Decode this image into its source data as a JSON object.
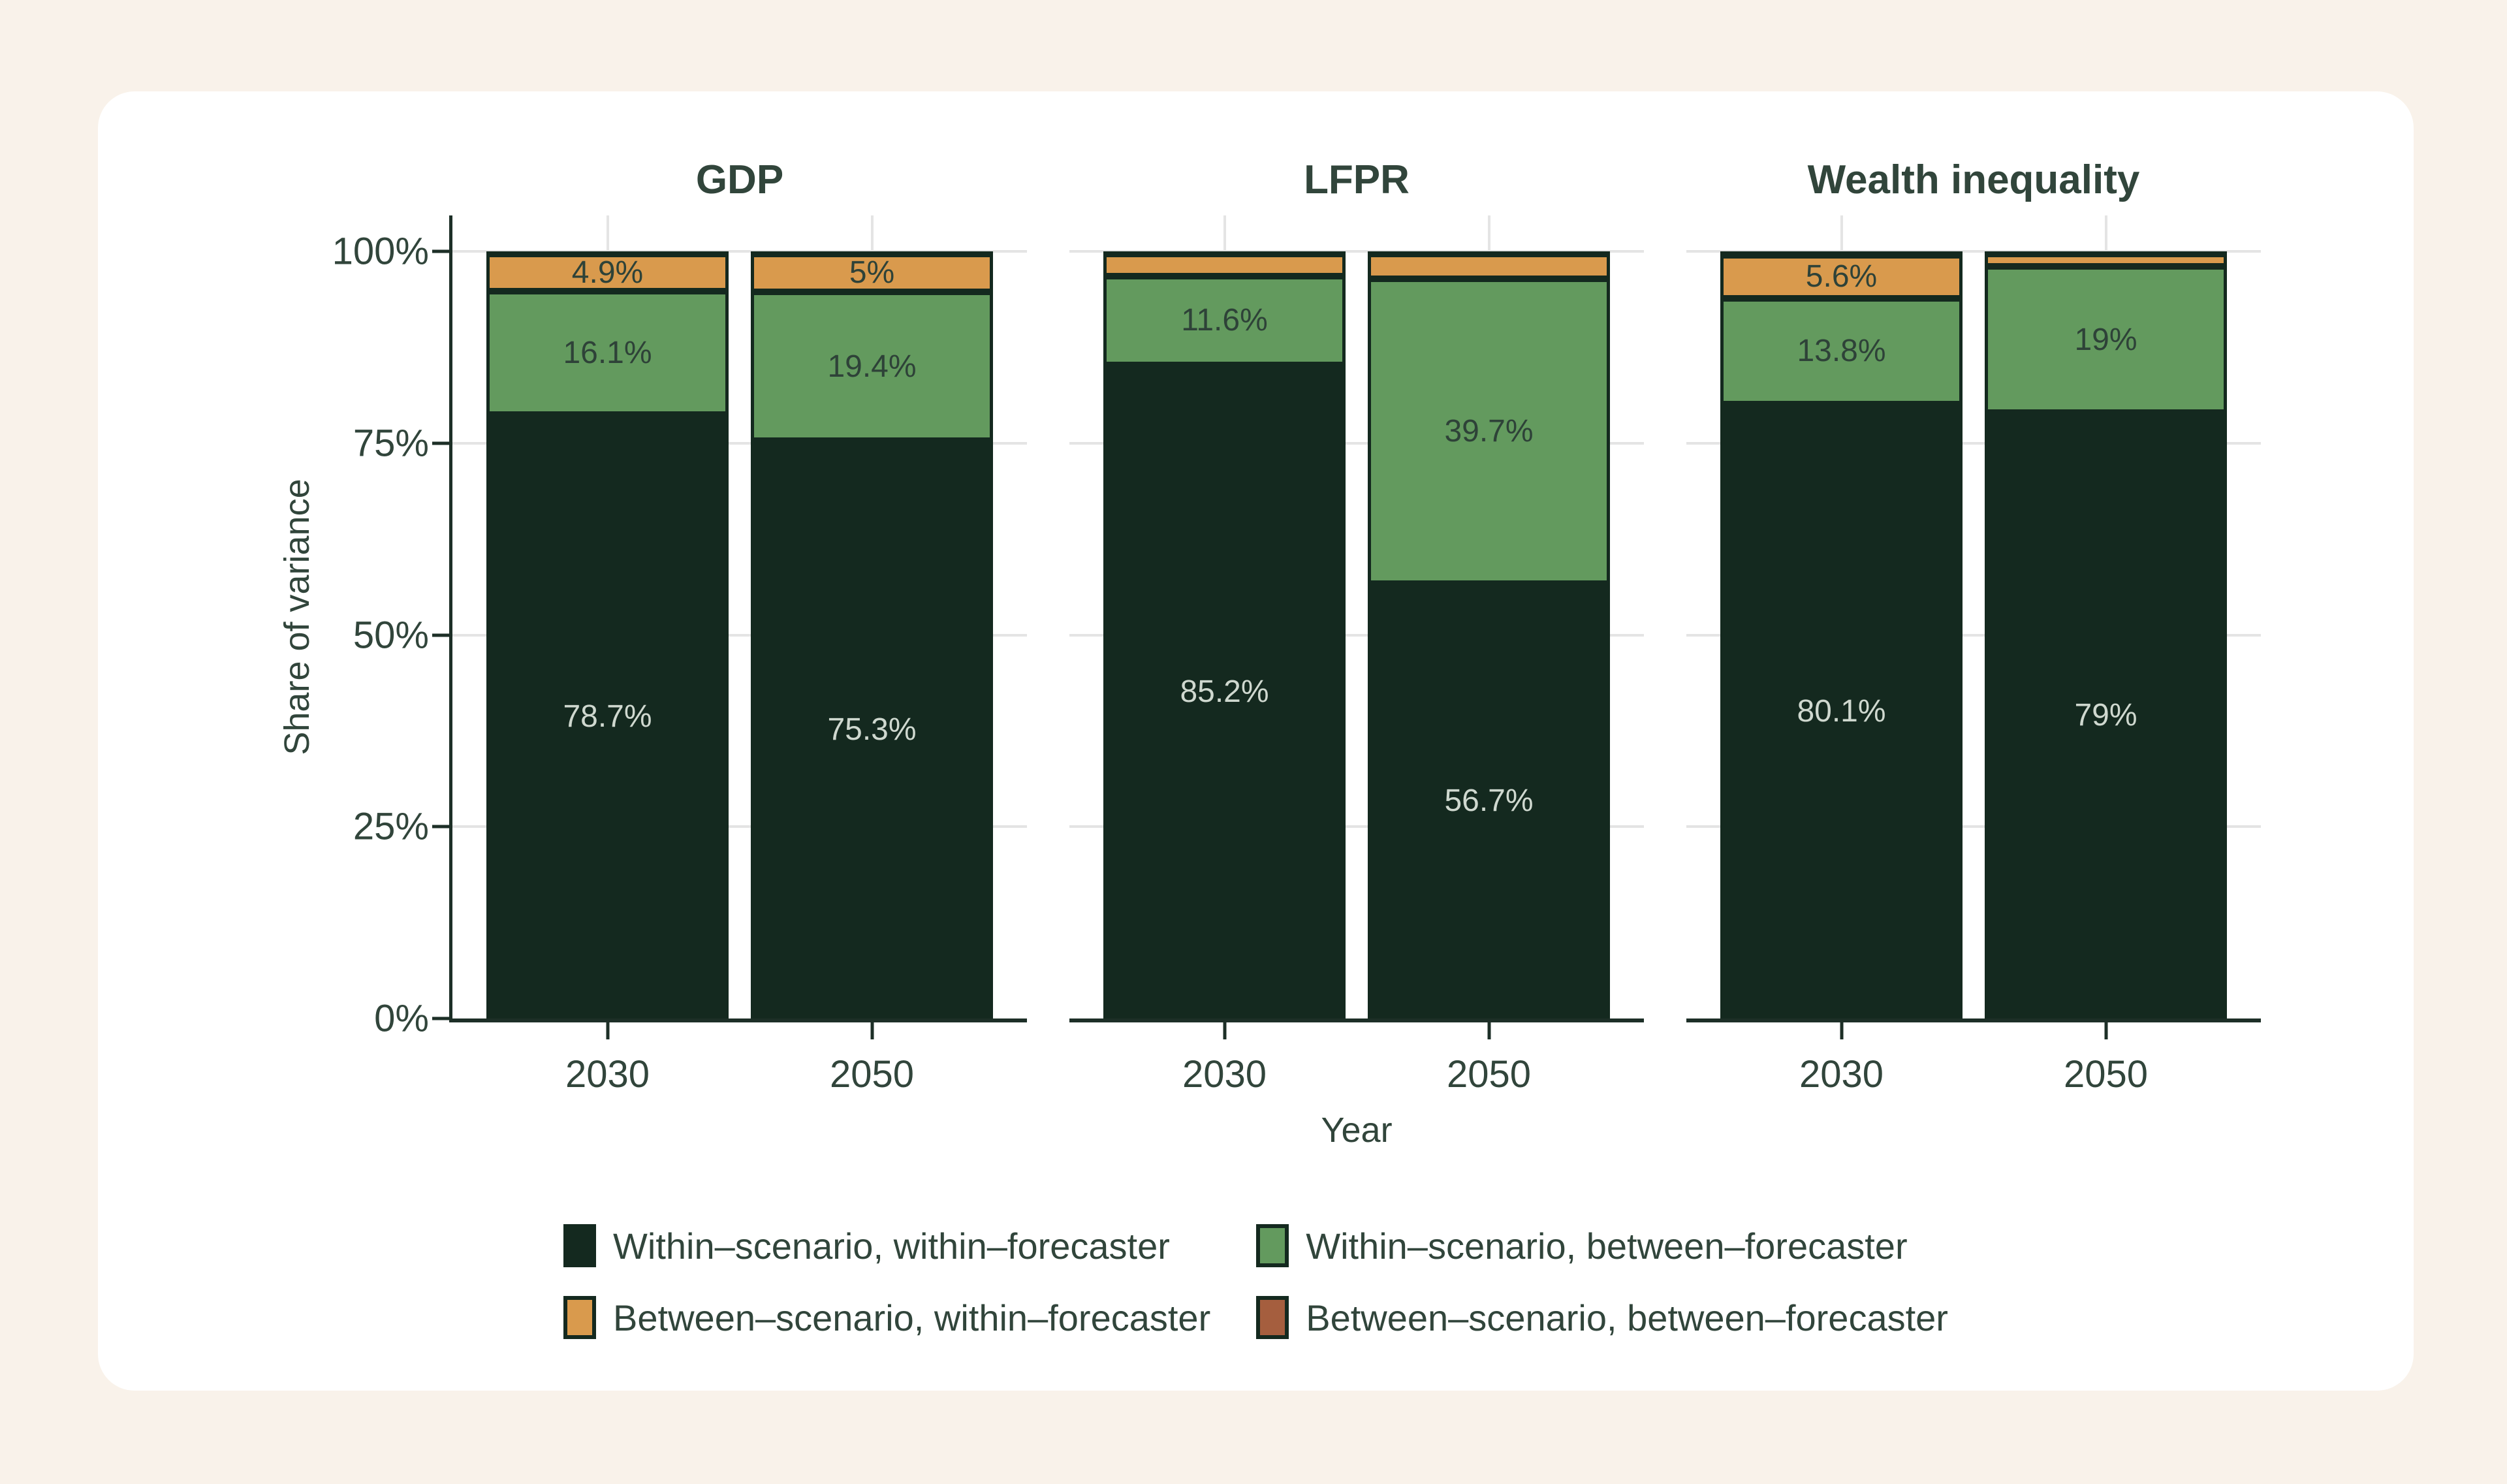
{
  "page": {
    "background_color": "#f9f2ea",
    "card_color": "#ffffff"
  },
  "colors": {
    "text": "#31453b",
    "axis": "#1d2f27",
    "gridline": "#e4e4e4",
    "segment_border": "#14291f",
    "label_on_dark": "#cfd8cf",
    "label_on_light": "#2e4238"
  },
  "chart_data": {
    "type": "bar",
    "stacked": true,
    "unit": "percent",
    "ylabel": "Share of variance",
    "xlabel": "Year",
    "ylim": [
      0,
      100
    ],
    "grid": "horizontal gridlines at 25/50/75/100 plus faint vertical gridlines at bar centers",
    "legend_position": "bottom",
    "yticks": [
      {
        "value": 100,
        "label": "100%"
      },
      {
        "value": 75,
        "label": "75%"
      },
      {
        "value": 50,
        "label": "50%"
      },
      {
        "value": 25,
        "label": "25%"
      },
      {
        "value": 0,
        "label": "0%"
      }
    ],
    "series": [
      {
        "id": "within_within",
        "name": "Within–scenario, within–forecaster",
        "color": "#14291f"
      },
      {
        "id": "within_between",
        "name": "Within–scenario, between–forecaster",
        "color": "#639a5e"
      },
      {
        "id": "between_within",
        "name": "Between–scenario, within–forecaster",
        "color": "#d99a4d"
      },
      {
        "id": "between_between",
        "name": "Between–scenario, between–forecaster",
        "color": "#a55e3e"
      }
    ],
    "panels": [
      {
        "title": "GDP",
        "bars": [
          {
            "category": "2030",
            "segments": [
              {
                "series": "within_within",
                "value": 78.7,
                "label": "78.7%"
              },
              {
                "series": "within_between",
                "value": 16.1,
                "label": "16.1%"
              },
              {
                "series": "between_within",
                "value": 4.9,
                "label": "4.9%"
              },
              {
                "series": "between_between",
                "value": 0.3,
                "label": null
              }
            ]
          },
          {
            "category": "2050",
            "segments": [
              {
                "series": "within_within",
                "value": 75.3,
                "label": "75.3%"
              },
              {
                "series": "within_between",
                "value": 19.4,
                "label": "19.4%"
              },
              {
                "series": "between_within",
                "value": 5.0,
                "label": "5%"
              },
              {
                "series": "between_between",
                "value": 0.3,
                "label": null
              }
            ]
          }
        ]
      },
      {
        "title": "LFPR",
        "bars": [
          {
            "category": "2030",
            "segments": [
              {
                "series": "within_within",
                "value": 85.2,
                "label": "85.2%"
              },
              {
                "series": "within_between",
                "value": 11.6,
                "label": "11.6%"
              },
              {
                "series": "between_within",
                "value": 2.9,
                "label": null
              },
              {
                "series": "between_between",
                "value": 0.3,
                "label": null
              }
            ]
          },
          {
            "category": "2050",
            "segments": [
              {
                "series": "within_within",
                "value": 56.7,
                "label": "56.7%"
              },
              {
                "series": "within_between",
                "value": 39.7,
                "label": "39.7%"
              },
              {
                "series": "between_within",
                "value": 3.3,
                "label": null
              },
              {
                "series": "between_between",
                "value": 0.3,
                "label": null
              }
            ]
          }
        ]
      },
      {
        "title": "Wealth inequality",
        "bars": [
          {
            "category": "2030",
            "segments": [
              {
                "series": "within_within",
                "value": 80.1,
                "label": "80.1%"
              },
              {
                "series": "within_between",
                "value": 13.8,
                "label": "13.8%"
              },
              {
                "series": "between_within",
                "value": 5.6,
                "label": "5.6%"
              },
              {
                "series": "between_between",
                "value": 0.5,
                "label": null
              }
            ]
          },
          {
            "category": "2050",
            "segments": [
              {
                "series": "within_within",
                "value": 79.0,
                "label": "79%"
              },
              {
                "series": "within_between",
                "value": 19.0,
                "label": "19%"
              },
              {
                "series": "between_within",
                "value": 1.7,
                "label": null
              },
              {
                "series": "between_between",
                "value": 0.3,
                "label": null
              }
            ]
          }
        ]
      }
    ]
  }
}
